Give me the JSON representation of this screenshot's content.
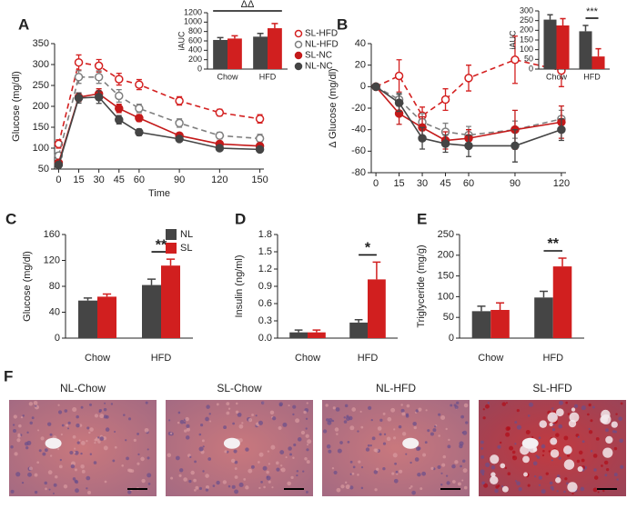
{
  "chart_data": [
    {
      "type": "line",
      "panel_label": "A",
      "xlabel": "Time",
      "ylabel": "Glucose (mg/dl)",
      "x": [
        0,
        15,
        30,
        45,
        60,
        90,
        120,
        150
      ],
      "xlim": [
        -3,
        153
      ],
      "xticks": [
        0,
        15,
        30,
        45,
        60,
        90,
        120,
        150
      ],
      "ylim": [
        50,
        350
      ],
      "yticks": [
        50,
        100,
        150,
        200,
        250,
        300,
        350
      ],
      "series": [
        {
          "name": "SL-HFD",
          "color": "#d42020",
          "dashed": true,
          "marker": "open",
          "values": [
            110,
            305,
            297,
            265,
            252,
            213,
            185,
            170
          ],
          "errors": [
            10,
            18,
            15,
            14,
            12,
            10,
            8,
            10
          ]
        },
        {
          "name": "NL-HFD",
          "color": "#7f7f7f",
          "dashed": true,
          "marker": "open",
          "values": [
            82,
            270,
            270,
            225,
            195,
            160,
            130,
            123
          ],
          "errors": [
            8,
            15,
            15,
            15,
            10,
            10,
            8,
            10
          ]
        },
        {
          "name": "SL-NC",
          "color": "#c41a1a",
          "dashed": false,
          "marker": "filled",
          "values": [
            65,
            222,
            230,
            195,
            172,
            130,
            110,
            105
          ],
          "errors": [
            5,
            10,
            12,
            10,
            8,
            6,
            6,
            6
          ]
        },
        {
          "name": "NL-NC",
          "color": "#454545",
          "dashed": false,
          "marker": "filled",
          "values": [
            60,
            220,
            222,
            168,
            138,
            122,
            100,
            97
          ],
          "errors": [
            5,
            12,
            15,
            10,
            8,
            6,
            6,
            6
          ]
        }
      ]
    },
    {
      "type": "bar",
      "ylabel": "iAUC",
      "categories": [
        "Chow",
        "HFD"
      ],
      "ylim": [
        0,
        1200
      ],
      "yticks": [
        0,
        200,
        400,
        600,
        800,
        1000,
        1200
      ],
      "annotation": "ΔΔ",
      "series": [
        {
          "color": "#454545",
          "values": [
            620,
            690
          ],
          "errors": [
            50,
            70
          ]
        },
        {
          "color": "#d11f1f",
          "values": [
            650,
            870
          ],
          "errors": [
            60,
            100
          ]
        }
      ]
    },
    {
      "type": "line",
      "panel_label": "B",
      "ylabel": "Δ Glucose (mg/dl)",
      "x": [
        0,
        15,
        30,
        45,
        60,
        90,
        120
      ],
      "xlim": [
        -3,
        123
      ],
      "xticks": [
        0,
        15,
        30,
        45,
        60,
        90,
        120
      ],
      "ylim": [
        -80,
        40
      ],
      "yticks": [
        -80,
        -60,
        -40,
        -20,
        0,
        20,
        40
      ],
      "series": [
        {
          "color": "#d42020",
          "dashed": true,
          "marker": "open",
          "values": [
            0,
            10,
            -27,
            -12,
            8,
            25,
            15
          ],
          "errors": [
            0,
            15,
            8,
            10,
            12,
            22,
            15
          ]
        },
        {
          "color": "#7f7f7f",
          "dashed": true,
          "marker": "open",
          "values": [
            0,
            -12,
            -33,
            -42,
            -45,
            -40,
            -30
          ],
          "errors": [
            0,
            6,
            8,
            8,
            8,
            8,
            8
          ]
        },
        {
          "color": "#c41a1a",
          "dashed": false,
          "marker": "filled",
          "values": [
            0,
            -25,
            -38,
            -50,
            -48,
            -40,
            -33
          ],
          "errors": [
            0,
            10,
            10,
            8,
            8,
            18,
            15
          ]
        },
        {
          "color": "#454545",
          "dashed": false,
          "marker": "filled",
          "values": [
            0,
            -15,
            -48,
            -53,
            -55,
            -55,
            -40
          ],
          "errors": [
            0,
            8,
            10,
            8,
            10,
            15,
            10
          ]
        }
      ]
    },
    {
      "type": "bar",
      "ylabel": "iAUC",
      "categories": [
        "Chow",
        "HFD"
      ],
      "ylim": [
        0,
        300
      ],
      "yticks": [
        0,
        50,
        100,
        150,
        200,
        250,
        300
      ],
      "annotation": "***",
      "series": [
        {
          "color": "#454545",
          "values": [
            255,
            195
          ],
          "errors": [
            25,
            30
          ]
        },
        {
          "color": "#d11f1f",
          "values": [
            225,
            65
          ],
          "errors": [
            35,
            40
          ]
        }
      ]
    },
    {
      "type": "bar",
      "panel_label": "C",
      "ylabel": "Glucose (mg/dl)",
      "categories": [
        "Chow",
        "HFD"
      ],
      "ylim": [
        0,
        160
      ],
      "yticks": [
        0,
        40,
        80,
        120,
        160
      ],
      "annotation": "**",
      "series": [
        {
          "name": "NL",
          "color": "#454545",
          "values": [
            58,
            82
          ],
          "errors": [
            4,
            9
          ]
        },
        {
          "name": "SL",
          "color": "#d11f1f",
          "values": [
            64,
            112
          ],
          "errors": [
            4,
            10
          ]
        }
      ]
    },
    {
      "type": "bar",
      "panel_label": "D",
      "ylabel": "Insulin (ng/ml)",
      "categories": [
        "Chow",
        "HFD"
      ],
      "ylim": [
        0,
        1.8
      ],
      "yticks": [
        {
          "value": 0,
          "label": "0.0"
        },
        0.3,
        0.6,
        0.9,
        1.2,
        1.5,
        1.8
      ],
      "annotation": "*",
      "series": [
        {
          "color": "#454545",
          "values": [
            0.1,
            0.27
          ],
          "errors": [
            0.04,
            0.05
          ]
        },
        {
          "color": "#d11f1f",
          "values": [
            0.1,
            1.02
          ],
          "errors": [
            0.04,
            0.3
          ]
        }
      ]
    },
    {
      "type": "bar",
      "panel_label": "E",
      "ylabel": "Triglyceride (mg/g)",
      "categories": [
        "Chow",
        "HFD"
      ],
      "ylim": [
        0,
        250
      ],
      "yticks": [
        0,
        50,
        100,
        150,
        200,
        250
      ],
      "annotation": "**",
      "series": [
        {
          "color": "#454545",
          "values": [
            65,
            98
          ],
          "errors": [
            12,
            15
          ]
        },
        {
          "color": "#d11f1f",
          "values": [
            68,
            173
          ],
          "errors": [
            17,
            20
          ]
        }
      ]
    }
  ],
  "histology": {
    "panel_label": "F",
    "images": [
      "NL-Chow",
      "SL-Chow",
      "NL-HFD",
      "SL-HFD"
    ]
  }
}
